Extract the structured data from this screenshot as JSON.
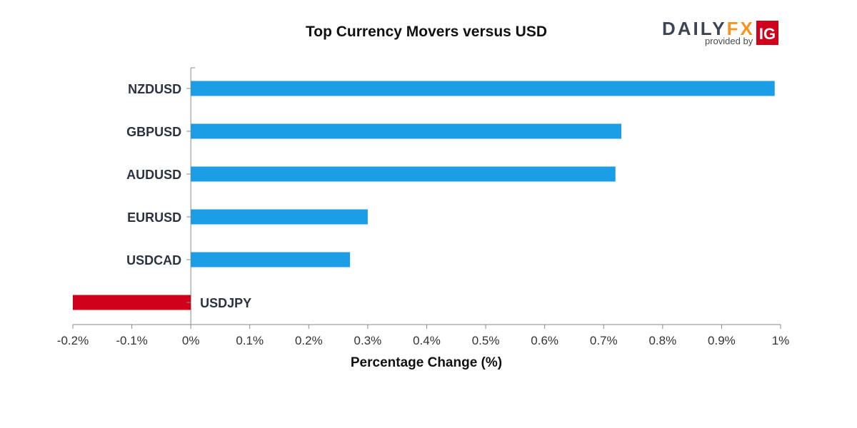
{
  "logo": {
    "brand_part1": "DAILY",
    "brand_part2": "FX",
    "provided_by": "provided by",
    "ig": "IG",
    "colors": {
      "brand_dark": "#3d4452",
      "brand_accent": "#f7941d",
      "ig_red": "#d0021b"
    }
  },
  "chart_data": {
    "type": "bar",
    "orientation": "horizontal",
    "title": "Top Currency Movers versus USD",
    "xlabel": "Percentage Change (%)",
    "ylabel": "",
    "categories": [
      "NZDUSD",
      "GBPUSD",
      "AUDUSD",
      "EURUSD",
      "USDCAD",
      "USDJPY"
    ],
    "values": [
      0.99,
      0.73,
      0.72,
      0.3,
      0.27,
      -0.2
    ],
    "xlim": [
      -0.2,
      1.0
    ],
    "xticks": [
      -0.2,
      -0.1,
      0,
      0.1,
      0.2,
      0.3,
      0.4,
      0.5,
      0.6,
      0.7,
      0.8,
      0.9,
      1.0
    ],
    "xtick_labels": [
      "-0.2%",
      "-0.1%",
      "0%",
      "0.1%",
      "0.2%",
      "0.3%",
      "0.4%",
      "0.5%",
      "0.6%",
      "0.7%",
      "0.8%",
      "0.9%",
      "1%"
    ],
    "grid": false,
    "colors": {
      "positive": "#1c9ee6",
      "negative": "#d0021b"
    }
  }
}
